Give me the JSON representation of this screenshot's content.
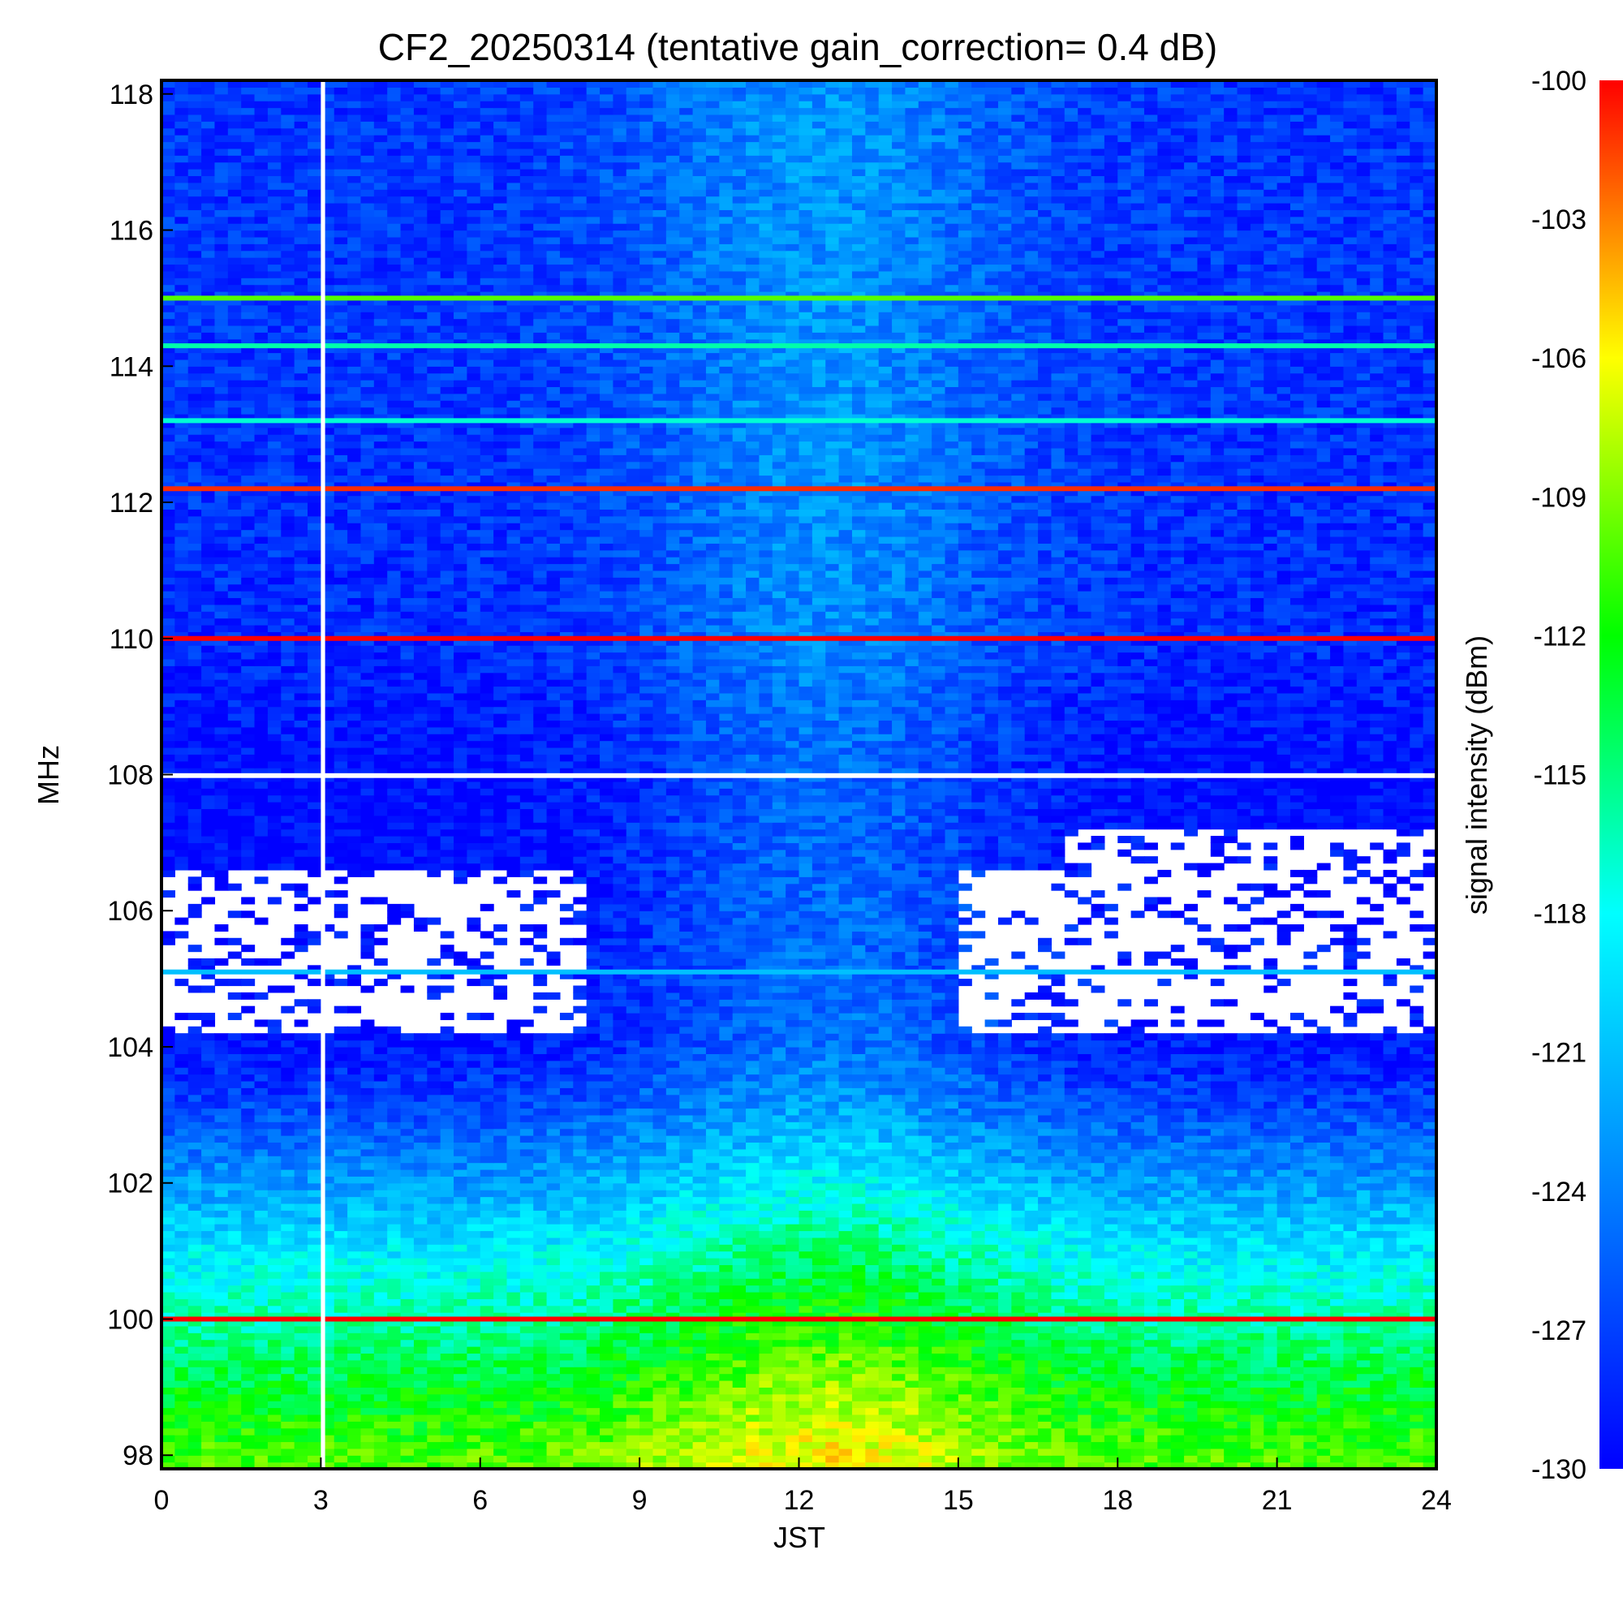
{
  "chart_data": {
    "type": "heatmap",
    "title": "CF2_20250314 (tentative gain_correction=  0.4 dB)",
    "xlabel": "JST",
    "ylabel": "MHz",
    "colorbar_label": "signal intensity (dBm)",
    "xlim": [
      0,
      24
    ],
    "ylim": [
      97.8,
      118.2
    ],
    "x_ticks": [
      "0",
      "3",
      "6",
      "9",
      "12",
      "15",
      "18",
      "21",
      "24"
    ],
    "y_ticks": [
      "98",
      "100",
      "102",
      "104",
      "106",
      "108",
      "110",
      "112",
      "114",
      "116",
      "118"
    ],
    "color_range": [
      -130,
      -100
    ],
    "colorbar_ticks": [
      "-100",
      "-103",
      "-106",
      "-109",
      "-112",
      "-115",
      "-118",
      "-121",
      "-124",
      "-127",
      "-130"
    ],
    "colormap": [
      "#0000ff",
      "#0040ff",
      "#0080ff",
      "#00c0ff",
      "#00ffff",
      "#00ff80",
      "#00ff00",
      "#80ff00",
      "#ffff00",
      "#ff8000",
      "#ff0000"
    ],
    "background_profile": [
      {
        "freq": 98.0,
        "dbm": -110.5
      },
      {
        "freq": 99.0,
        "dbm": -113
      },
      {
        "freq": 100.0,
        "dbm": -116
      },
      {
        "freq": 101.0,
        "dbm": -119
      },
      {
        "freq": 101.8,
        "dbm": -122
      },
      {
        "freq": 102.5,
        "dbm": -124.5
      },
      {
        "freq": 103.2,
        "dbm": -127
      },
      {
        "freq": 104.0,
        "dbm": -129
      },
      {
        "freq": 106.0,
        "dbm": -129.5
      },
      {
        "freq": 108.0,
        "dbm": -129.5
      },
      {
        "freq": 110.0,
        "dbm": -128
      },
      {
        "freq": 114.0,
        "dbm": -127.5
      },
      {
        "freq": 118.0,
        "dbm": -127.5
      }
    ],
    "daytime_enhancement": {
      "center_jst": 12.5,
      "width_hours": 3.5,
      "peak_db": 4.5
    },
    "persistent_lines": [
      {
        "freq": 100.0,
        "dbm": -100
      },
      {
        "freq": 110.0,
        "dbm": -100
      },
      {
        "freq": 112.2,
        "dbm": -101
      },
      {
        "freq": 115.0,
        "dbm": -110
      },
      {
        "freq": 113.2,
        "dbm": -117
      },
      {
        "freq": 114.3,
        "dbm": -116
      },
      {
        "freq": 105.1,
        "dbm": -121
      }
    ],
    "gaps_no_data": [
      {
        "jst_range": [
          3.0,
          3.08
        ],
        "freq_range": [
          97.8,
          118.2
        ]
      },
      {
        "jst_range": [
          0,
          24
        ],
        "freq_range": [
          107.95,
          108.02
        ]
      }
    ],
    "sparse_regions": [
      {
        "jst_range": [
          0,
          8
        ],
        "freq_range": [
          104.2,
          106.6
        ]
      },
      {
        "jst_range": [
          15,
          24
        ],
        "freq_range": [
          104.2,
          106.6
        ]
      },
      {
        "jst_range": [
          17,
          24
        ],
        "freq_range": [
          106.6,
          107.2
        ]
      }
    ]
  }
}
